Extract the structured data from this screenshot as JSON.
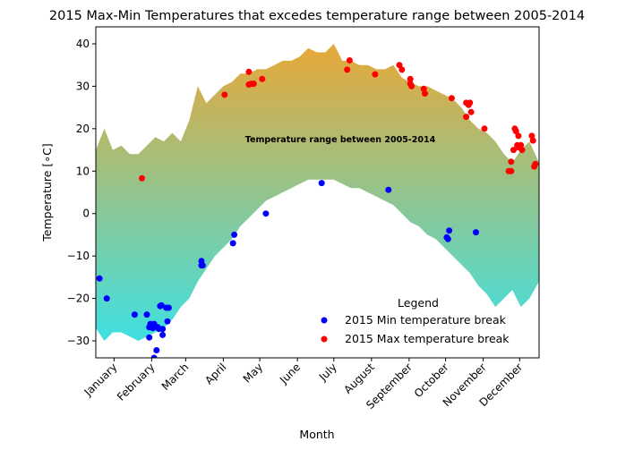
{
  "chart_data": {
    "type": "scatter",
    "title": "2015 Max-Min Temperatures that excedes temperature range between 2005-2014",
    "xlabel": "Month",
    "ylabel": "Temperature [∘C]",
    "ylim": [
      -34,
      44
    ],
    "xlim": [
      0,
      365
    ],
    "x_ticks": [
      {
        "label": "January",
        "day": 15
      },
      {
        "label": "February",
        "day": 46
      },
      {
        "label": "March",
        "day": 74
      },
      {
        "label": "April",
        "day": 105
      },
      {
        "label": "May",
        "day": 135
      },
      {
        "label": "June",
        "day": 166
      },
      {
        "label": "July",
        "day": 196
      },
      {
        "label": "August",
        "day": 227
      },
      {
        "label": "September",
        "day": 258
      },
      {
        "label": "October",
        "day": 288
      },
      {
        "label": "November",
        "day": 319
      },
      {
        "label": "December",
        "day": 349
      }
    ],
    "y_ticks": [
      40,
      30,
      20,
      10,
      0,
      -10,
      -20,
      -30
    ],
    "annotation": "Temperature range between 2005-2014",
    "legend": {
      "title": "Legend",
      "placement": "bottom-right",
      "entries": [
        "2015 Min temperature break",
        "2015 Max temperature break"
      ]
    },
    "band_colors": {
      "top": "#e8a838",
      "bottom": "#3fe0e2"
    },
    "band": {
      "day": [
        0,
        7,
        14,
        21,
        28,
        35,
        42,
        49,
        56,
        63,
        70,
        77,
        84,
        91,
        98,
        105,
        112,
        119,
        126,
        133,
        140,
        147,
        154,
        161,
        168,
        175,
        182,
        189,
        196,
        203,
        210,
        217,
        224,
        231,
        238,
        245,
        252,
        259,
        266,
        273,
        280,
        287,
        294,
        301,
        308,
        315,
        322,
        329,
        336,
        343,
        350,
        357,
        365
      ],
      "high": [
        15,
        20,
        15,
        16,
        14,
        14,
        16,
        18,
        17,
        19,
        17,
        22,
        30,
        26,
        28,
        30,
        31,
        33,
        33,
        34,
        34,
        35,
        36,
        36,
        37,
        39,
        38,
        38,
        40,
        36,
        36,
        35,
        35,
        34,
        34,
        35,
        32,
        31,
        30,
        30,
        29,
        28,
        27,
        25,
        22,
        20,
        19,
        17,
        14,
        12,
        15,
        17,
        12
      ],
      "low": [
        -27,
        -30,
        -28,
        -28,
        -29,
        -30,
        -29,
        -28,
        -27,
        -25,
        -22,
        -20,
        -16,
        -13,
        -10,
        -8,
        -6,
        -3,
        -1,
        1,
        3,
        4,
        5,
        6,
        7,
        8,
        8,
        8,
        8,
        7,
        6,
        6,
        5,
        4,
        3,
        2,
        0,
        -2,
        -3,
        -5,
        -6,
        -8,
        -10,
        -12,
        -14,
        -17,
        -19,
        -22,
        -20,
        -18,
        -22,
        -20,
        -16
      ]
    },
    "series": [
      {
        "name": "2015 Min temperature break",
        "color": "#0000ff",
        "points": [
          [
            3,
            -15.3
          ],
          [
            9,
            -20.0
          ],
          [
            32,
            -23.8
          ],
          [
            42,
            -23.8
          ],
          [
            44,
            -26.8
          ],
          [
            44,
            -29.2
          ],
          [
            45,
            -26.0
          ],
          [
            47,
            -27.0
          ],
          [
            48,
            -26.0
          ],
          [
            48,
            -34.0
          ],
          [
            50,
            -32.2
          ],
          [
            51,
            -26.8
          ],
          [
            52,
            -27.2
          ],
          [
            53,
            -21.8
          ],
          [
            54,
            -21.6
          ],
          [
            55,
            -28.6
          ],
          [
            55,
            -27.2
          ],
          [
            58,
            -22.2
          ],
          [
            59,
            -25.4
          ],
          [
            60,
            -22.2
          ],
          [
            87,
            -12.2
          ],
          [
            87,
            -11.2
          ],
          [
            88,
            -12.2
          ],
          [
            113,
            -7.0
          ],
          [
            114,
            -5.0
          ],
          [
            140,
            0.0
          ],
          [
            186,
            7.2
          ],
          [
            241,
            5.6
          ],
          [
            289,
            -5.6
          ],
          [
            290,
            -6.0
          ],
          [
            291,
            -4.0
          ],
          [
            313,
            -4.4
          ]
        ]
      },
      {
        "name": "2015 Max temperature break",
        "color": "#ff0000",
        "points": [
          [
            38,
            8.3
          ],
          [
            106,
            28.0
          ],
          [
            126,
            33.4
          ],
          [
            126,
            30.4
          ],
          [
            128,
            30.6
          ],
          [
            130,
            30.6
          ],
          [
            137,
            31.7
          ],
          [
            207,
            33.9
          ],
          [
            209,
            36.1
          ],
          [
            230,
            32.8
          ],
          [
            250,
            35.0
          ],
          [
            252,
            33.9
          ],
          [
            259,
            31.7
          ],
          [
            259,
            30.6
          ],
          [
            260,
            30.0
          ],
          [
            270,
            29.4
          ],
          [
            271,
            28.3
          ],
          [
            293,
            27.2
          ],
          [
            305,
            26.1
          ],
          [
            305,
            22.8
          ],
          [
            307,
            25.6
          ],
          [
            308,
            26.1
          ],
          [
            309,
            23.9
          ],
          [
            320,
            20.0
          ],
          [
            340,
            10.0
          ],
          [
            342,
            12.2
          ],
          [
            342,
            10.0
          ],
          [
            344,
            15.0
          ],
          [
            345,
            20.0
          ],
          [
            346,
            19.4
          ],
          [
            347,
            16.1
          ],
          [
            348,
            18.3
          ],
          [
            348,
            15.6
          ],
          [
            350,
            16.1
          ],
          [
            351,
            15.0
          ],
          [
            359,
            18.3
          ],
          [
            360,
            17.2
          ],
          [
            361,
            11.1
          ],
          [
            362,
            11.7
          ]
        ]
      }
    ]
  }
}
